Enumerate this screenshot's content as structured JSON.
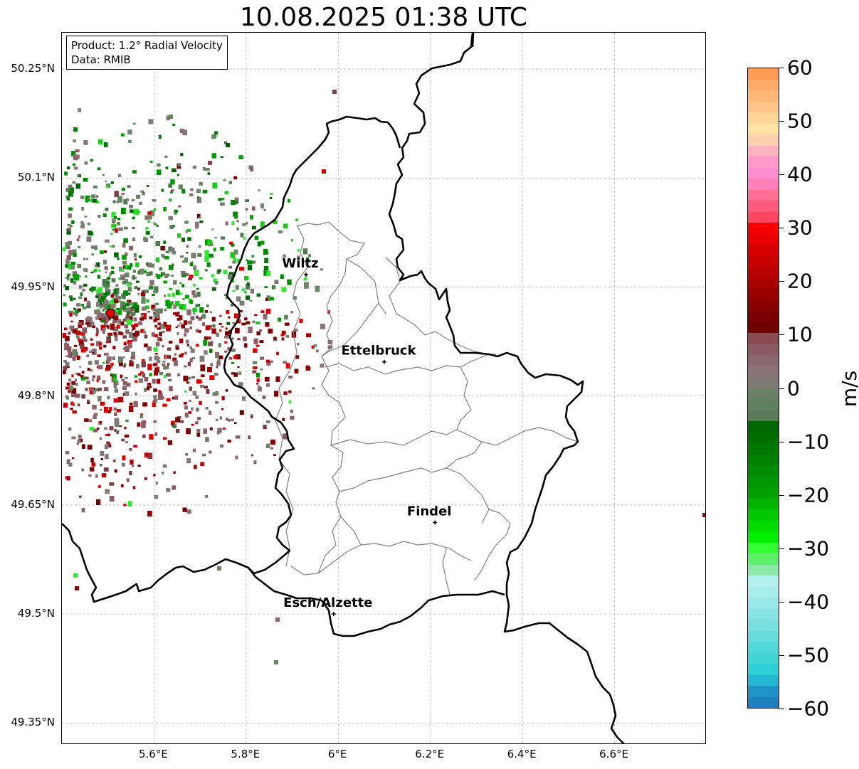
{
  "title": "10.08.2025 01:38 UTC",
  "info": {
    "product": "Product: 1.2° Radial Velocity",
    "data_source": "Data: RMIB"
  },
  "map": {
    "lon_range": [
      5.4,
      6.8
    ],
    "lat_range": [
      49.32,
      50.3
    ],
    "lat_ticks": [
      {
        "value": 50.25,
        "label": "50.25°N"
      },
      {
        "value": 50.1,
        "label": "50.1°N"
      },
      {
        "value": 49.95,
        "label": "49.95°N"
      },
      {
        "value": 49.8,
        "label": "49.8°N"
      },
      {
        "value": 49.65,
        "label": "49.65°N"
      },
      {
        "value": 49.5,
        "label": "49.5°N"
      },
      {
        "value": 49.35,
        "label": "49.35°N"
      }
    ],
    "lon_ticks": [
      {
        "value": 5.6,
        "label": "5.6°E"
      },
      {
        "value": 5.8,
        "label": "5.8°E"
      },
      {
        "value": 6.0,
        "label": "6°E"
      },
      {
        "value": 6.2,
        "label": "6.2°E"
      },
      {
        "value": 6.4,
        "label": "6.4°E"
      },
      {
        "value": 6.6,
        "label": "6.6°E"
      }
    ],
    "cities": [
      {
        "name": "Wiltz",
        "lon": 5.93,
        "lat": 49.967
      },
      {
        "name": "Ettelbruck",
        "lon": 6.1,
        "lat": 49.847
      },
      {
        "name": "Findel",
        "lon": 6.21,
        "lat": 49.626
      },
      {
        "name": "Esch/Alzette",
        "lon": 5.99,
        "lat": 49.5
      }
    ],
    "radar_site": {
      "lon": 5.505,
      "lat": 49.914
    },
    "grid": true
  },
  "colorbar": {
    "unit": "m/s",
    "range": [
      -60,
      60
    ],
    "ticks": [
      {
        "value": 60,
        "label": "60"
      },
      {
        "value": 50,
        "label": "50"
      },
      {
        "value": 40,
        "label": "40"
      },
      {
        "value": 30,
        "label": "30"
      },
      {
        "value": 20,
        "label": "20"
      },
      {
        "value": 10,
        "label": "10"
      },
      {
        "value": 0,
        "label": "0"
      },
      {
        "value": -10,
        "label": "−10"
      },
      {
        "value": -20,
        "label": "−20"
      },
      {
        "value": -30,
        "label": "−30"
      },
      {
        "value": -40,
        "label": "−40"
      },
      {
        "value": -50,
        "label": "−50"
      },
      {
        "value": -60,
        "label": "−60"
      }
    ],
    "colors_top_to_bottom": [
      "#ff9a55",
      "#ffaa66",
      "#ffb877",
      "#ffc488",
      "#ffd699",
      "#ffe3a4",
      "#ffcfb0",
      "#ffb3c1",
      "#ff99c9",
      "#ff8fd0",
      "#ff7fb8",
      "#ff6f96",
      "#ff5a7e",
      "#ff4560",
      "#f40000",
      "#e80000",
      "#d60000",
      "#c80000",
      "#b80000",
      "#a80000",
      "#980000",
      "#880000",
      "#780000",
      "#700000",
      "#8a4a52",
      "#8c5a62",
      "#8a6a70",
      "#887478",
      "#7c7a72",
      "#6c8066",
      "#608060",
      "#5a7a58",
      "#006600",
      "#006e00",
      "#007800",
      "#008200",
      "#008c00",
      "#009600",
      "#00a000",
      "#00b400",
      "#00c800",
      "#00dc00",
      "#00ee00",
      "#33ff33",
      "#5ef06a",
      "#8ce8a8",
      "#b4f0f0",
      "#a8ecec",
      "#98e8e8",
      "#88e4e4",
      "#78e0e0",
      "#66dcdc",
      "#52d8d8",
      "#40d4d4",
      "#30d0d8",
      "#24b8d4",
      "#1f92c8",
      "#1f80c0"
    ]
  }
}
